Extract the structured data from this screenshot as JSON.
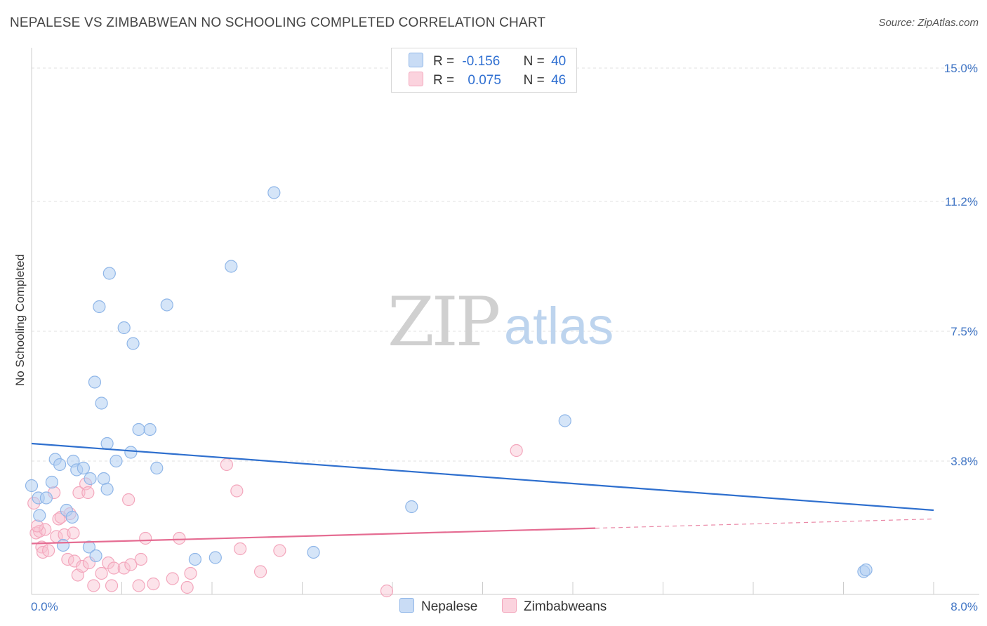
{
  "header": {
    "title": "NEPALESE VS ZIMBABWEAN NO SCHOOLING COMPLETED CORRELATION CHART",
    "source": "Source: ZipAtlas.com"
  },
  "watermark": {
    "zip": "ZIP",
    "atlas": "atlas"
  },
  "legend": {
    "r_label": "R =",
    "n_label": "N =",
    "rows": [
      {
        "r": "-0.156",
        "n": "40",
        "color": "#b3cff2"
      },
      {
        "r": "0.075",
        "n": "46",
        "color": "#f9c0d0"
      }
    ]
  },
  "bottom_legend": [
    {
      "label": "Nepalese",
      "color": "#b3cff2"
    },
    {
      "label": "Zimbabweans",
      "color": "#f9c0d0"
    }
  ],
  "chart_data": {
    "type": "scatter",
    "title": "NEPALESE VS ZIMBABWEAN NO SCHOOLING COMPLETED CORRELATION CHART",
    "xlabel": "",
    "ylabel": "No Schooling Completed",
    "xlim": [
      0,
      8.0
    ],
    "ylim": [
      0,
      15.0
    ],
    "x_tick_labels": [
      "0.0%",
      "8.0%"
    ],
    "y_ticks": [
      3.8,
      7.5,
      11.2,
      15.0
    ],
    "y_tick_labels": [
      "3.8%",
      "7.5%",
      "11.2%",
      "15.0%"
    ],
    "grid": "horizontal dashed",
    "series": [
      {
        "name": "Nepalese",
        "color": "#8fb6e8",
        "trend_color": "#2e6fce",
        "trend": {
          "x0": 0.0,
          "y0": 4.3,
          "x1": 8.0,
          "y1": 2.4,
          "dashed_from": null
        },
        "points": [
          [
            0.0,
            3.1
          ],
          [
            0.06,
            2.75
          ],
          [
            0.13,
            2.75
          ],
          [
            0.18,
            3.2
          ],
          [
            0.21,
            3.85
          ],
          [
            0.25,
            3.7
          ],
          [
            0.07,
            2.25
          ],
          [
            0.31,
            2.4
          ],
          [
            0.28,
            1.4
          ],
          [
            0.36,
            2.2
          ],
          [
            0.37,
            3.8
          ],
          [
            0.4,
            3.55
          ],
          [
            0.46,
            3.6
          ],
          [
            0.52,
            3.3
          ],
          [
            0.51,
            1.35
          ],
          [
            0.57,
            1.1
          ],
          [
            0.64,
            3.3
          ],
          [
            0.67,
            3.0
          ],
          [
            0.75,
            3.8
          ],
          [
            0.62,
            5.45
          ],
          [
            0.67,
            4.3
          ],
          [
            0.6,
            8.2
          ],
          [
            0.56,
            6.05
          ],
          [
            0.69,
            9.15
          ],
          [
            0.82,
            7.6
          ],
          [
            0.88,
            4.05
          ],
          [
            0.9,
            7.15
          ],
          [
            0.95,
            4.7
          ],
          [
            1.05,
            4.7
          ],
          [
            1.11,
            3.6
          ],
          [
            1.2,
            8.25
          ],
          [
            1.45,
            1.0
          ],
          [
            1.63,
            1.05
          ],
          [
            1.77,
            9.35
          ],
          [
            2.15,
            11.45
          ],
          [
            2.5,
            1.2
          ],
          [
            3.37,
            2.5
          ],
          [
            4.73,
            4.95
          ],
          [
            7.38,
            0.65
          ],
          [
            7.4,
            0.7
          ]
        ]
      },
      {
        "name": "Zimbabweans",
        "color": "#f3a6bc",
        "trend_color": "#e56c92",
        "trend": {
          "x0": 0.0,
          "y0": 1.45,
          "x1": 8.0,
          "y1": 2.15,
          "dashed_from": 5.0
        },
        "points": [
          [
            0.02,
            2.6
          ],
          [
            0.04,
            1.75
          ],
          [
            0.07,
            1.8
          ],
          [
            0.09,
            1.35
          ],
          [
            0.1,
            1.2
          ],
          [
            0.12,
            1.85
          ],
          [
            0.15,
            1.25
          ],
          [
            0.2,
            2.9
          ],
          [
            0.22,
            1.65
          ],
          [
            0.24,
            2.15
          ],
          [
            0.26,
            2.2
          ],
          [
            0.29,
            1.7
          ],
          [
            0.32,
            1.0
          ],
          [
            0.34,
            2.3
          ],
          [
            0.37,
            1.75
          ],
          [
            0.38,
            0.95
          ],
          [
            0.41,
            0.55
          ],
          [
            0.42,
            2.9
          ],
          [
            0.45,
            0.8
          ],
          [
            0.48,
            3.15
          ],
          [
            0.5,
            2.9
          ],
          [
            0.51,
            0.9
          ],
          [
            0.55,
            0.25
          ],
          [
            0.62,
            0.6
          ],
          [
            0.68,
            0.9
          ],
          [
            0.71,
            0.25
          ],
          [
            0.73,
            0.75
          ],
          [
            0.82,
            0.75
          ],
          [
            0.86,
            2.7
          ],
          [
            0.88,
            0.85
          ],
          [
            0.95,
            0.25
          ],
          [
            0.97,
            1.0
          ],
          [
            1.01,
            1.6
          ],
          [
            1.08,
            0.3
          ],
          [
            1.25,
            0.45
          ],
          [
            1.31,
            1.6
          ],
          [
            1.38,
            0.2
          ],
          [
            1.41,
            0.6
          ],
          [
            1.73,
            3.7
          ],
          [
            1.82,
            2.95
          ],
          [
            1.85,
            1.3
          ],
          [
            2.03,
            0.65
          ],
          [
            2.2,
            1.25
          ],
          [
            3.15,
            0.1
          ],
          [
            4.3,
            4.1
          ],
          [
            0.05,
            1.95
          ]
        ]
      }
    ]
  }
}
